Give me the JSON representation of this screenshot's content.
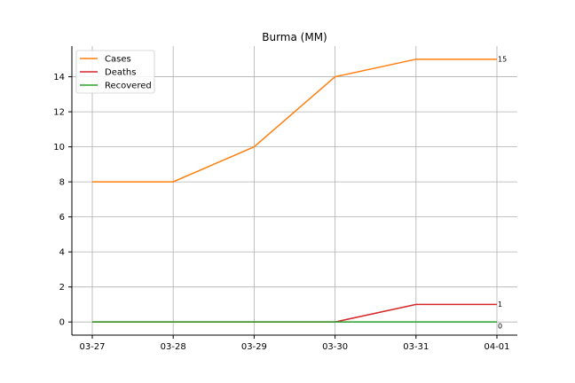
{
  "chart_data": {
    "type": "line",
    "title": "Burma (MM)",
    "xlabel": "",
    "ylabel": "",
    "categories": [
      "03-27",
      "03-28",
      "03-29",
      "03-30",
      "03-31",
      "04-01"
    ],
    "ylim": [
      -0.75,
      15.75
    ],
    "yticks": [
      0,
      2,
      4,
      6,
      8,
      10,
      12,
      14
    ],
    "grid": true,
    "legend_position": "top-left",
    "series": [
      {
        "name": "Cases",
        "color": "#ff7f0e",
        "values": [
          8,
          8,
          10,
          14,
          15,
          15
        ],
        "end_label": "15"
      },
      {
        "name": "Deaths",
        "color": "#d62728",
        "values": [
          0,
          0,
          0,
          0,
          1,
          1
        ],
        "end_label": "1"
      },
      {
        "name": "Recovered",
        "color": "#2ca02c",
        "values": [
          0,
          0,
          0,
          0,
          0,
          0
        ],
        "end_label": "0"
      }
    ]
  }
}
